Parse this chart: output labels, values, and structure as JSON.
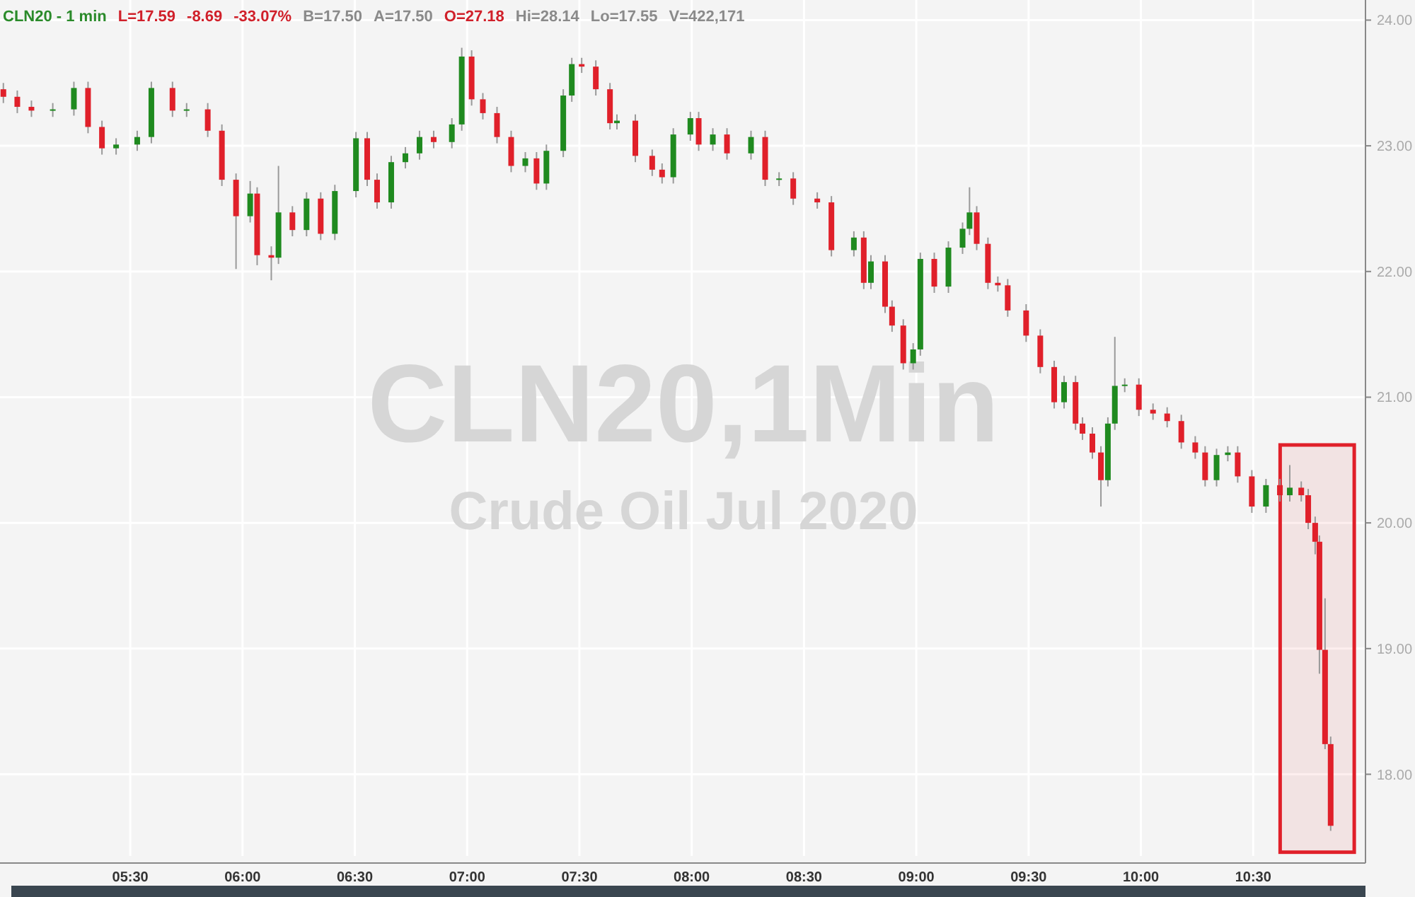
{
  "chart_data": {
    "type": "candlestick",
    "title": "CLN20 - 1 min",
    "annotations": [
      "L=17.59",
      "-8.69",
      "-33.07%",
      "B=17.50",
      "A=17.50",
      "O=27.18",
      "Hi=28.14",
      "Lo=17.55",
      "V=422,171",
      "CLN20,1Min",
      "Crude Oil Jul 2020"
    ],
    "xlim": [
      4.92,
      11.0
    ],
    "xticks": [
      {
        "value": 5.5,
        "label": "05:30"
      },
      {
        "value": 6,
        "label": "06:00"
      },
      {
        "value": 6.5,
        "label": "06:30"
      },
      {
        "value": 7,
        "label": "07:00"
      },
      {
        "value": 7.5,
        "label": "07:30"
      },
      {
        "value": 8,
        "label": "08:00"
      },
      {
        "value": 8.5,
        "label": "08:30"
      },
      {
        "value": 9,
        "label": "09:00"
      },
      {
        "value": 9.5,
        "label": "09:30"
      },
      {
        "value": 10,
        "label": "10:00"
      },
      {
        "value": 10.5,
        "label": "10:30"
      }
    ],
    "ylim": [
      17.35,
      24.16
    ],
    "yticks": [
      {
        "value": 18,
        "label": "18.00"
      },
      {
        "value": 19,
        "label": "19.00"
      },
      {
        "value": 20,
        "label": "20.00"
      },
      {
        "value": 21,
        "label": "21.00"
      },
      {
        "value": 22,
        "label": "22.00"
      },
      {
        "value": 23,
        "label": "23.00"
      },
      {
        "value": 24,
        "label": "24.00"
      }
    ],
    "grid": true,
    "bands": [
      {
        "axis": "x",
        "from": 10.62,
        "to": 10.95,
        "color": "#e0202a"
      }
    ],
    "series": [
      {
        "color": "#1f8a1f",
        "x": [
          5.155,
          5.249,
          5.437,
          5.531,
          5.594,
          5.751,
          6.034,
          6.16,
          6.285,
          6.411,
          6.505,
          6.662,
          6.725,
          6.788,
          6.932,
          6.976,
          7.259,
          7.353,
          7.428,
          7.466,
          7.667,
          7.918,
          7.994,
          8.094,
          8.264,
          8.389,
          8.722,
          8.798,
          8.986,
          9.018,
          9.143,
          9.206,
          9.237,
          9.658,
          9.853,
          9.884,
          9.928,
          10.337,
          10.387,
          10.557,
          10.663
        ],
        "ohlc": [
          [
            23.28,
            23.34,
            23.23,
            23.29
          ],
          [
            23.29,
            23.51,
            23.24,
            23.46
          ],
          [
            22.98,
            23.06,
            22.93,
            23.01
          ],
          [
            23.01,
            23.12,
            22.96,
            23.07
          ],
          [
            23.07,
            23.51,
            23.02,
            23.46
          ],
          [
            23.28,
            23.34,
            23.23,
            23.29
          ],
          [
            22.44,
            22.72,
            22.39,
            22.62
          ],
          [
            22.11,
            22.84,
            22.06,
            22.47
          ],
          [
            22.33,
            22.63,
            22.28,
            22.58
          ],
          [
            22.3,
            22.69,
            22.25,
            22.64
          ],
          [
            22.64,
            23.11,
            22.59,
            23.06
          ],
          [
            22.55,
            22.92,
            22.5,
            22.87
          ],
          [
            22.87,
            22.99,
            22.82,
            22.94
          ],
          [
            22.94,
            23.12,
            22.89,
            23.07
          ],
          [
            23.03,
            23.22,
            22.98,
            23.17
          ],
          [
            23.17,
            23.78,
            23.12,
            23.71
          ],
          [
            22.84,
            22.95,
            22.79,
            22.9
          ],
          [
            22.7,
            23.01,
            22.65,
            22.96
          ],
          [
            22.96,
            23.45,
            22.91,
            23.4
          ],
          [
            23.4,
            23.7,
            23.35,
            23.65
          ],
          [
            23.18,
            23.25,
            23.13,
            23.2
          ],
          [
            22.75,
            23.14,
            22.7,
            23.09
          ],
          [
            23.09,
            23.27,
            23.04,
            23.22
          ],
          [
            23.01,
            23.14,
            22.96,
            23.09
          ],
          [
            22.94,
            23.12,
            22.89,
            23.07
          ],
          [
            22.73,
            22.79,
            22.68,
            22.74
          ],
          [
            22.17,
            22.32,
            22.12,
            22.27
          ],
          [
            21.91,
            22.13,
            21.86,
            22.08
          ],
          [
            21.27,
            21.43,
            21.22,
            21.38
          ],
          [
            21.38,
            22.15,
            21.33,
            22.1
          ],
          [
            21.88,
            22.24,
            21.83,
            22.19
          ],
          [
            22.19,
            22.39,
            22.14,
            22.34
          ],
          [
            22.34,
            22.67,
            22.29,
            22.47
          ],
          [
            20.96,
            21.17,
            20.91,
            21.12
          ],
          [
            20.34,
            20.84,
            20.29,
            20.79
          ],
          [
            20.79,
            21.48,
            20.74,
            21.09
          ],
          [
            21.09,
            21.15,
            21.04,
            21.1
          ],
          [
            20.34,
            20.59,
            20.29,
            20.54
          ],
          [
            20.54,
            20.61,
            20.49,
            20.56
          ],
          [
            20.13,
            20.35,
            20.08,
            20.3
          ],
          [
            20.22,
            20.46,
            20.17,
            20.28
          ]
        ]
      },
      {
        "color": "#e0202a",
        "x": [
          4.935,
          4.997,
          5.06,
          5.312,
          5.374,
          5.688,
          5.845,
          5.908,
          5.971,
          6.065,
          6.128,
          6.222,
          6.348,
          6.555,
          6.599,
          6.851,
          7.02,
          7.07,
          7.133,
          7.196,
          7.309,
          7.51,
          7.573,
          7.636,
          7.749,
          7.824,
          7.868,
          8.031,
          8.157,
          8.327,
          8.452,
          8.559,
          8.622,
          8.766,
          8.861,
          8.892,
          8.942,
          9.08,
          9.269,
          9.319,
          9.363,
          9.407,
          9.489,
          9.552,
          9.614,
          9.709,
          9.74,
          9.784,
          9.822,
          9.991,
          10.054,
          10.117,
          10.18,
          10.242,
          10.286,
          10.431,
          10.494,
          10.619,
          10.714,
          10.745,
          10.776,
          10.795,
          10.82,
          10.845
        ],
        "ohlc": [
          [
            23.45,
            23.5,
            23.34,
            23.39
          ],
          [
            23.39,
            23.44,
            23.26,
            23.31
          ],
          [
            23.31,
            23.36,
            23.23,
            23.28
          ],
          [
            23.46,
            23.51,
            23.1,
            23.15
          ],
          [
            23.15,
            23.2,
            22.93,
            22.98
          ],
          [
            23.46,
            23.51,
            23.23,
            23.28
          ],
          [
            23.29,
            23.34,
            23.07,
            23.12
          ],
          [
            23.12,
            23.17,
            22.68,
            22.73
          ],
          [
            22.73,
            22.78,
            22.02,
            22.44
          ],
          [
            22.62,
            22.67,
            22.05,
            22.13
          ],
          [
            22.13,
            22.2,
            21.93,
            22.11
          ],
          [
            22.47,
            22.52,
            22.28,
            22.33
          ],
          [
            22.58,
            22.63,
            22.25,
            22.3
          ],
          [
            23.06,
            23.11,
            22.68,
            22.73
          ],
          [
            22.73,
            22.78,
            22.5,
            22.55
          ],
          [
            23.07,
            23.12,
            22.98,
            23.03
          ],
          [
            23.71,
            23.76,
            23.32,
            23.37
          ],
          [
            23.37,
            23.42,
            23.21,
            23.26
          ],
          [
            23.26,
            23.31,
            23.02,
            23.07
          ],
          [
            23.07,
            23.12,
            22.79,
            22.84
          ],
          [
            22.9,
            22.95,
            22.65,
            22.7
          ],
          [
            23.65,
            23.7,
            23.58,
            23.63
          ],
          [
            23.63,
            23.68,
            23.4,
            23.45
          ],
          [
            23.45,
            23.5,
            23.13,
            23.18
          ],
          [
            23.2,
            23.25,
            22.87,
            22.92
          ],
          [
            22.92,
            22.97,
            22.76,
            22.81
          ],
          [
            22.81,
            22.86,
            22.7,
            22.75
          ],
          [
            23.22,
            23.27,
            22.96,
            23.01
          ],
          [
            23.09,
            23.14,
            22.89,
            22.94
          ],
          [
            23.07,
            23.12,
            22.68,
            22.73
          ],
          [
            22.74,
            22.79,
            22.53,
            22.58
          ],
          [
            22.58,
            22.63,
            22.5,
            22.55
          ],
          [
            22.55,
            22.6,
            22.12,
            22.17
          ],
          [
            22.27,
            22.32,
            21.86,
            21.91
          ],
          [
            22.08,
            22.13,
            21.67,
            21.72
          ],
          [
            21.72,
            21.77,
            21.52,
            21.57
          ],
          [
            21.57,
            21.62,
            21.22,
            21.27
          ],
          [
            22.1,
            22.15,
            21.83,
            21.88
          ],
          [
            22.47,
            22.52,
            22.17,
            22.22
          ],
          [
            22.22,
            22.27,
            21.86,
            21.91
          ],
          [
            21.91,
            21.96,
            21.84,
            21.89
          ],
          [
            21.89,
            21.94,
            21.64,
            21.69
          ],
          [
            21.69,
            21.74,
            21.44,
            21.49
          ],
          [
            21.49,
            21.54,
            21.19,
            21.24
          ],
          [
            21.24,
            21.29,
            20.91,
            20.96
          ],
          [
            21.12,
            21.17,
            20.74,
            20.79
          ],
          [
            20.79,
            20.84,
            20.66,
            20.71
          ],
          [
            20.71,
            20.76,
            20.51,
            20.56
          ],
          [
            20.56,
            20.61,
            20.13,
            20.34
          ],
          [
            21.1,
            21.15,
            20.85,
            20.9
          ],
          [
            20.9,
            20.95,
            20.82,
            20.87
          ],
          [
            20.87,
            20.92,
            20.76,
            20.81
          ],
          [
            20.81,
            20.86,
            20.59,
            20.64
          ],
          [
            20.64,
            20.69,
            20.51,
            20.56
          ],
          [
            20.56,
            20.61,
            20.29,
            20.34
          ],
          [
            20.56,
            20.61,
            20.32,
            20.37
          ],
          [
            20.37,
            20.42,
            20.08,
            20.13
          ],
          [
            20.3,
            20.35,
            20.17,
            20.22
          ],
          [
            20.28,
            20.33,
            20.17,
            20.22
          ],
          [
            20.22,
            20.27,
            19.95,
            20.0
          ],
          [
            20.0,
            20.05,
            19.75,
            19.85
          ],
          [
            19.85,
            19.9,
            18.8,
            18.99
          ],
          [
            18.99,
            19.4,
            18.2,
            18.24
          ],
          [
            18.24,
            18.3,
            17.55,
            17.59
          ]
        ]
      }
    ]
  }
}
